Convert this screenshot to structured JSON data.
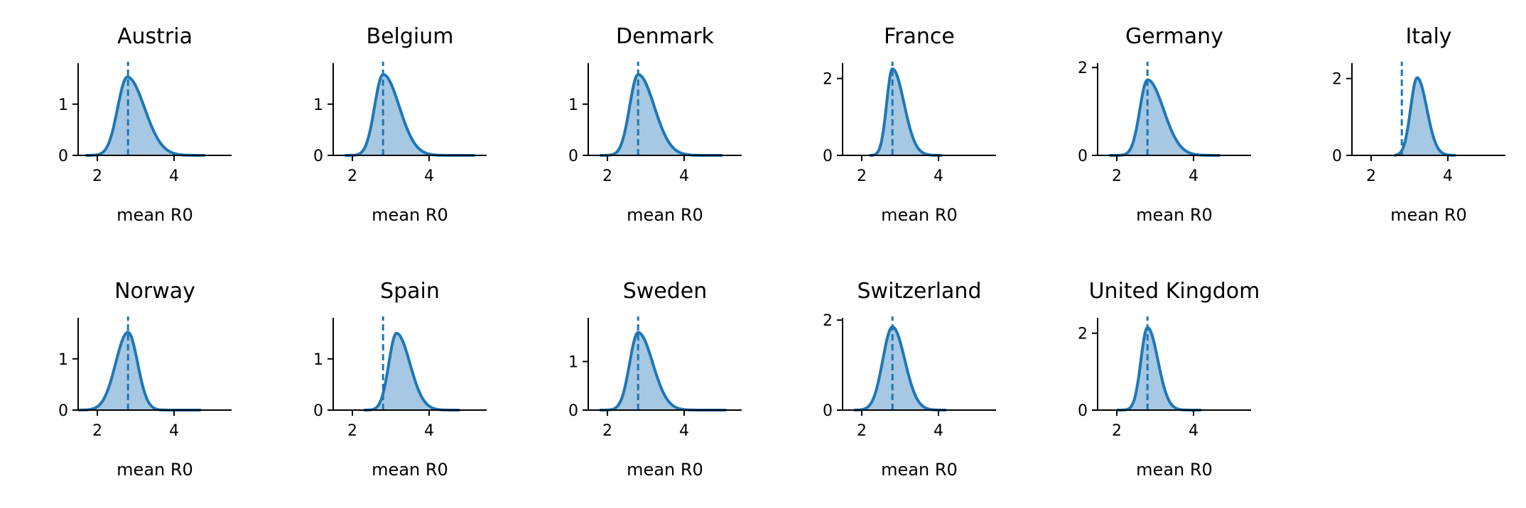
{
  "colors": {
    "line": "#1f77b4",
    "fill": "#a6c8e3",
    "axis": "#000000"
  },
  "chart_data": [
    {
      "type": "area",
      "title": "Austria",
      "xlabel": "mean R0",
      "xlim": [
        1.5,
        5.5
      ],
      "ylim": [
        0,
        1.8
      ],
      "xticks": [
        "2",
        "4"
      ],
      "yticks": [
        "0",
        "1"
      ],
      "mean_line": 2.8,
      "peak": 2.78,
      "peak_height": 1.53,
      "left_width": 0.25,
      "right_width": 0.45,
      "x_range": [
        1.7,
        4.8
      ]
    },
    {
      "type": "area",
      "title": "Belgium",
      "xlabel": "mean R0",
      "xlim": [
        1.5,
        5.5
      ],
      "ylim": [
        0,
        1.8
      ],
      "xticks": [
        "2",
        "4"
      ],
      "yticks": [
        "0",
        "1"
      ],
      "mean_line": 2.8,
      "peak": 2.8,
      "peak_height": 1.58,
      "left_width": 0.22,
      "right_width": 0.42,
      "x_range": [
        1.8,
        5.2
      ]
    },
    {
      "type": "area",
      "title": "Denmark",
      "xlabel": "mean R0",
      "xlim": [
        1.5,
        5.5
      ],
      "ylim": [
        0,
        1.8
      ],
      "xticks": [
        "2",
        "4"
      ],
      "yticks": [
        "0",
        "1"
      ],
      "mean_line": 2.8,
      "peak": 2.8,
      "peak_height": 1.58,
      "left_width": 0.22,
      "right_width": 0.42,
      "x_range": [
        1.8,
        5.0
      ]
    },
    {
      "type": "area",
      "title": "France",
      "xlabel": "mean R0",
      "xlim": [
        1.5,
        5.5
      ],
      "ylim": [
        0,
        2.4
      ],
      "xticks": [
        "2",
        "4"
      ],
      "yticks": [
        "0",
        "2"
      ],
      "mean_line": 2.8,
      "peak": 2.8,
      "peak_height": 2.25,
      "left_width": 0.15,
      "right_width": 0.3,
      "x_range": [
        2.2,
        4.1
      ]
    },
    {
      "type": "area",
      "title": "Germany",
      "xlabel": "mean R0",
      "xlim": [
        1.5,
        5.5
      ],
      "ylim": [
        0,
        2.1
      ],
      "xticks": [
        "2",
        "4"
      ],
      "yticks": [
        "0",
        "2"
      ],
      "mean_line": 2.8,
      "peak": 2.8,
      "peak_height": 1.72,
      "left_width": 0.2,
      "right_width": 0.42,
      "x_range": [
        1.8,
        4.7
      ]
    },
    {
      "type": "area",
      "title": "Italy",
      "xlabel": "mean R0",
      "xlim": [
        1.5,
        5.5
      ],
      "ylim": [
        0,
        2.4
      ],
      "xticks": [
        "2",
        "4"
      ],
      "yticks": [
        "0",
        "2"
      ],
      "mean_line": 2.8,
      "peak": 3.2,
      "peak_height": 2.02,
      "left_width": 0.17,
      "right_width": 0.25,
      "x_range": [
        2.6,
        4.2
      ]
    },
    {
      "type": "area",
      "title": "Norway",
      "xlabel": "mean R0",
      "xlim": [
        1.5,
        5.5
      ],
      "ylim": [
        0,
        1.8
      ],
      "xticks": [
        "2",
        "4"
      ],
      "yticks": [
        "0",
        "1"
      ],
      "mean_line": 2.8,
      "peak": 2.8,
      "peak_height": 1.52,
      "left_width": 0.32,
      "right_width": 0.25,
      "x_range": [
        1.5,
        4.7
      ]
    },
    {
      "type": "area",
      "title": "Spain",
      "xlabel": "mean R0",
      "xlim": [
        1.5,
        5.5
      ],
      "ylim": [
        0,
        1.8
      ],
      "xticks": [
        "2",
        "4"
      ],
      "yticks": [
        "0",
        "1"
      ],
      "mean_line": 2.8,
      "peak": 3.15,
      "peak_height": 1.5,
      "left_width": 0.2,
      "right_width": 0.35,
      "x_range": [
        2.3,
        4.8
      ]
    },
    {
      "type": "area",
      "title": "Sweden",
      "xlabel": "mean R0",
      "xlim": [
        1.5,
        5.5
      ],
      "ylim": [
        0,
        1.9
      ],
      "xticks": [
        "2",
        "4"
      ],
      "yticks": [
        "0",
        "1"
      ],
      "mean_line": 2.8,
      "peak": 2.8,
      "peak_height": 1.6,
      "left_width": 0.22,
      "right_width": 0.38,
      "x_range": [
        1.8,
        5.1
      ]
    },
    {
      "type": "area",
      "title": "Switzerland",
      "xlabel": "mean R0",
      "xlim": [
        1.5,
        5.5
      ],
      "ylim": [
        0,
        2.05
      ],
      "xticks": [
        "2",
        "4"
      ],
      "yticks": [
        "0",
        "2"
      ],
      "mean_line": 2.8,
      "peak": 2.8,
      "peak_height": 1.85,
      "left_width": 0.25,
      "right_width": 0.32,
      "x_range": [
        1.8,
        4.2
      ]
    },
    {
      "type": "area",
      "title": "United Kingdom",
      "xlabel": "mean R0",
      "xlim": [
        1.5,
        5.5
      ],
      "ylim": [
        0,
        2.4
      ],
      "xticks": [
        "2",
        "4"
      ],
      "yticks": [
        "0",
        "2"
      ],
      "mean_line": 2.8,
      "peak": 2.8,
      "peak_height": 2.15,
      "left_width": 0.17,
      "right_width": 0.27,
      "x_range": [
        2.0,
        4.2
      ]
    }
  ]
}
